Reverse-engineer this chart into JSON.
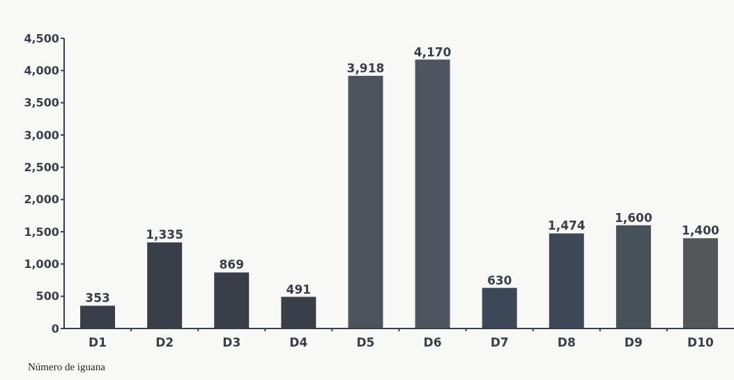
{
  "chart_data": {
    "type": "bar",
    "xlabel": "Número de iguana",
    "categories": [
      "D1",
      "D2",
      "D3",
      "D4",
      "D5",
      "D6",
      "D7",
      "D8",
      "D9",
      "D10"
    ],
    "values": [
      353,
      1335,
      869,
      491,
      3918,
      4170,
      630,
      1474,
      1600,
      1400
    ],
    "value_labels": [
      "353",
      "1,335",
      "869",
      "491",
      "3,918",
      "4,170",
      "630",
      "1,474",
      "1,600",
      "1,400"
    ],
    "colors": [
      "#3a3e48",
      "#3a3e48",
      "#3a3e48",
      "#3a3e48",
      "#4c535c",
      "#50545e",
      "#3c4858",
      "#3e4856",
      "#465258",
      "#55565a"
    ],
    "ylim": [
      0,
      4500
    ],
    "yticks": [
      0,
      500,
      {
        "value": 1000,
        "label": "1,000"
      },
      {
        "value": 1500,
        "label": "1,500"
      },
      {
        "value": 2000,
        "label": "2,000"
      },
      {
        "value": 2500,
        "label": "2,500"
      },
      {
        "value": 3000,
        "label": "3,000"
      },
      {
        "value": 3500,
        "label": "3,500"
      },
      {
        "value": 4000,
        "label": "4,000"
      },
      {
        "value": 4500,
        "label": "4,500"
      }
    ]
  }
}
